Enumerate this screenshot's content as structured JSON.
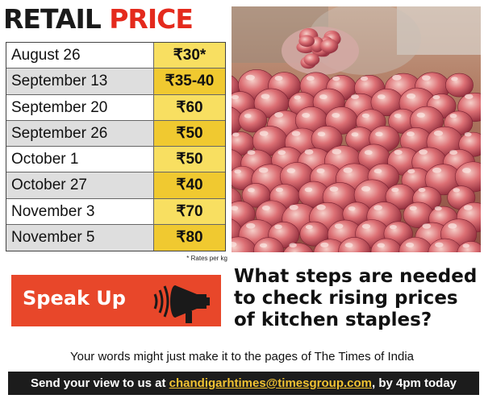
{
  "header": {
    "word1": "RETAIL",
    "word2": "PRICE"
  },
  "table": {
    "rows": [
      {
        "date": "August 26",
        "price": "₹30*"
      },
      {
        "date": "September 13",
        "price": "₹35-40"
      },
      {
        "date": "September 20",
        "price": "₹60"
      },
      {
        "date": "September 26",
        "price": "₹50"
      },
      {
        "date": "October 1",
        "price": "₹50"
      },
      {
        "date": "October 27",
        "price": "₹40"
      },
      {
        "date": "November 3",
        "price": "₹70"
      },
      {
        "date": "November 5",
        "price": "₹80"
      }
    ],
    "footnote": "* Rates per kg"
  },
  "speak_up": {
    "label": "Speak Up"
  },
  "question": {
    "lines": [
      "What steps are needed",
      "to check rising prices",
      "of kitchen staples?"
    ]
  },
  "your_words": "Your words might just make it to the pages of The Times of India",
  "cta": {
    "prefix": "Send your view to us at ",
    "email": "chandigarhtimes@timesgroup.com",
    "suffix": ", by 4pm today"
  },
  "colors": {
    "accent_red": "#e42a1d",
    "speak_up_bg": "#e8472a",
    "price_yellow": "#f8df61",
    "price_yellow_dark": "#f0c930",
    "email_yellow": "#f1c232"
  },
  "photo": {
    "subject": "onions-photo"
  }
}
